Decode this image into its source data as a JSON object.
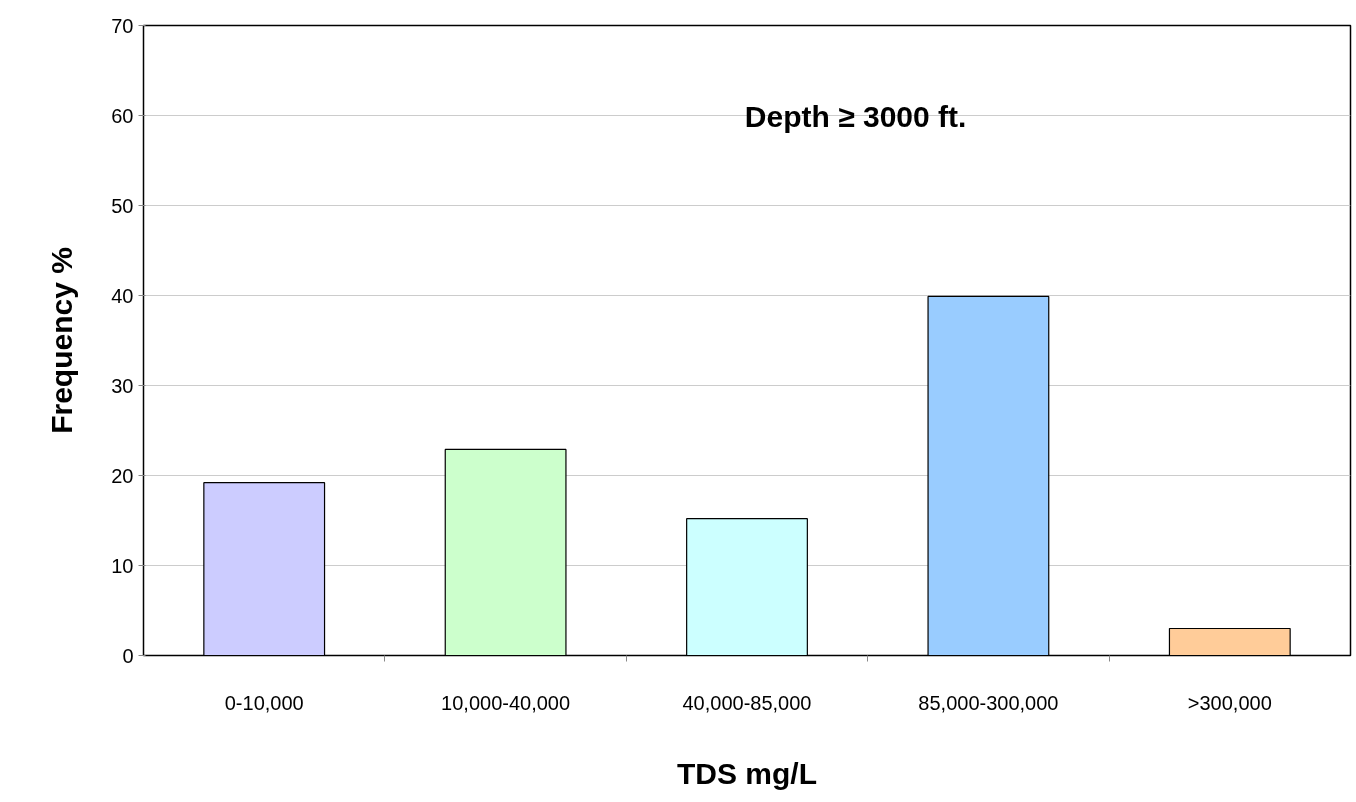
{
  "chart_data": {
    "type": "bar",
    "xlabel": "TDS mg/L",
    "ylabel": "Frequency %",
    "categories": [
      "0-10,000",
      "10,000-40,000",
      "40,000-85,000",
      "85,000-300,000",
      ">300,000"
    ],
    "values": [
      19.2,
      22.9,
      15.2,
      39.9,
      3.0
    ],
    "colors": [
      "#ccccff",
      "#ccffcc",
      "#ccffff",
      "#99ccff",
      "#ffcc99"
    ],
    "ylim": [
      0,
      70
    ],
    "yticks": [
      0,
      10,
      20,
      30,
      40,
      50,
      60,
      70
    ],
    "grid": "y",
    "annotations": [
      "Depth ≥ 3000 ft."
    ]
  }
}
